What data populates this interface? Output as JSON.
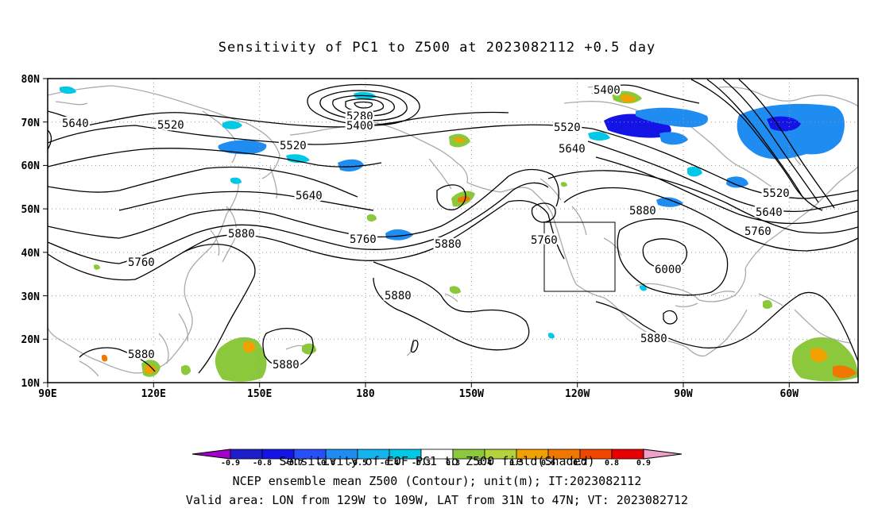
{
  "title": "Sensitivity of PC1 to Z500 at 2023082112 +0.5 day",
  "lat_labels": [
    "80N",
    "70N",
    "60N",
    "50N",
    "40N",
    "30N",
    "20N",
    "10N"
  ],
  "lon_labels": [
    "90E",
    "120E",
    "150E",
    "180",
    "150W",
    "120W",
    "90W",
    "60W"
  ],
  "contour_labels": [
    "5640",
    "5520",
    "5520",
    "5640",
    "5280",
    "5400",
    "5520",
    "5400",
    "5640",
    "5520",
    "5640",
    "5760",
    "5880",
    "5880",
    "5760",
    "5760",
    "5880",
    "5760",
    "5880",
    "6000",
    "5880",
    "5880",
    "5880"
  ],
  "colorbar": {
    "ticks": [
      "-0.9",
      "-0.8",
      "-0.7",
      "-0.6",
      "-0.5",
      "-0.4",
      "-0.3",
      "0.3",
      "0.4",
      "0.5",
      "0.6",
      "0.7",
      "0.8",
      "0.9"
    ],
    "colors": [
      "#a000c8",
      "#1e1ec8",
      "#1414e6",
      "#2850fa",
      "#1e8cf0",
      "#14b4f0",
      "#00c8e6",
      "#ffffff",
      "#8cc83c",
      "#b4d23c",
      "#f0a000",
      "#f07800",
      "#f04600",
      "#e60000",
      "#f0a0c8"
    ]
  },
  "captions": [
    "Sensitivity of EOF PC1 to Z500 field(Shaded)",
    "NCEP ensemble mean Z500 (Contour); unit(m); IT:2023082112",
    "Valid area: LON from 129W to 109W, LAT from 31N to 47N; VT: 2023082712"
  ]
}
